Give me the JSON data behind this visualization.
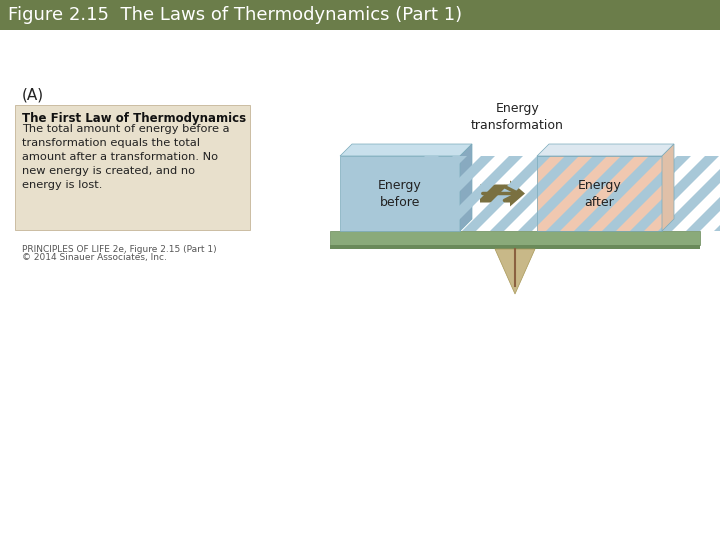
{
  "title": "Figure 2.15  The Laws of Thermodynamics (Part 1)",
  "title_bg": "#6b7d4a",
  "title_color": "#ffffff",
  "title_fontsize": 13,
  "bg_color": "#ffffff",
  "label_A": "(A)",
  "text_box_bg": "#e8e0cc",
  "text_box_title": "The First Law of Thermodynamics",
  "text_box_body": "The total amount of energy before a\ntransformation equals the total\namount after a transformation. No\nnew energy is created, and no\nenergy is lost.",
  "caption_line1": "PRINCIPLES OF LIFE 2e, Figure 2.15 (Part 1)",
  "caption_line2": "© 2014 Sinauer Associates, Inc.",
  "energy_transformation_label": "Energy\ntransformation",
  "energy_before_label": "Energy\nbefore",
  "energy_after_label": "Energy\nafter",
  "block_before_color": "#a8c8d8",
  "block_before_edge": "#7aaabb",
  "block_after_stripe1": "#a8c8d8",
  "block_after_stripe2": "#f0c8b0",
  "plank_color": "#8aaa7a",
  "plank_edge": "#6a8a5a",
  "triangle_color": "#c8b888",
  "triangle_edge": "#a89858",
  "arrow_color": "#7a7040",
  "shadow_color": "#8aaa7a"
}
